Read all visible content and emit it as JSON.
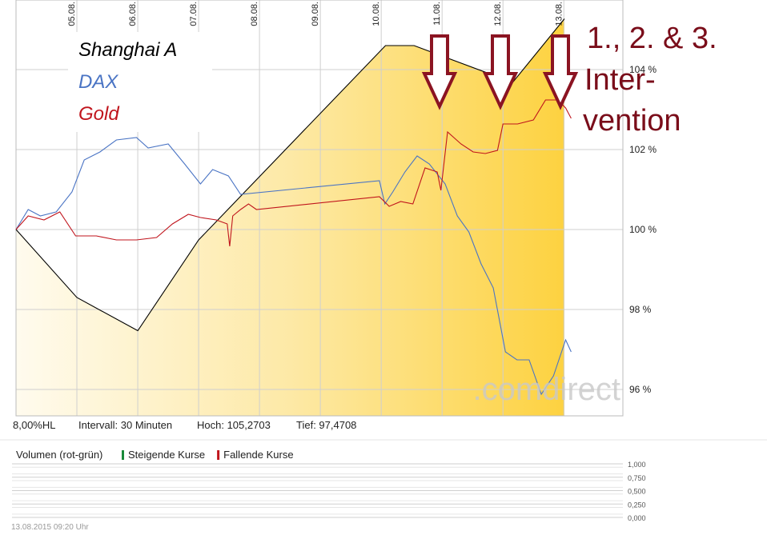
{
  "chart_data": [
    {
      "type": "line",
      "xlim": [
        4,
        13.97
      ],
      "ylim": [
        95.34,
        105.74
      ],
      "xticks": [
        {
          "value": 5,
          "label": "05.08."
        },
        {
          "value": 6,
          "label": "06.08."
        },
        {
          "value": 7,
          "label": "07.08."
        },
        {
          "value": 8,
          "label": "08.08."
        },
        {
          "value": 9,
          "label": "09.08."
        },
        {
          "value": 10,
          "label": "10.08."
        },
        {
          "value": 11,
          "label": "11.08."
        },
        {
          "value": 12,
          "label": "12.08."
        },
        {
          "value": 13,
          "label": "13.08."
        }
      ],
      "yticks": [
        {
          "value": 96,
          "label": "96 %"
        },
        {
          "value": 98,
          "label": "98 %"
        },
        {
          "value": 100,
          "label": "100 %"
        },
        {
          "value": 102,
          "label": "102 %"
        },
        {
          "value": 104,
          "label": "104 %"
        }
      ],
      "grid": true,
      "series": [
        {
          "name": "Shanghai A",
          "color": "#000000",
          "area": true,
          "x": [
            4.0,
            5.0,
            6.0,
            7.0,
            10.07,
            10.54,
            12.16,
            13.01
          ],
          "values": [
            100,
            98.3,
            97.47,
            99.74,
            104.6,
            104.6,
            103.68,
            105.27
          ]
        },
        {
          "name": "DAX",
          "color": "#4a74c4",
          "x": [
            4.0,
            4.2,
            4.4,
            4.66,
            4.92,
            5.12,
            5.38,
            5.65,
            5.98,
            6.17,
            6.5,
            6.77,
            7.03,
            7.23,
            7.49,
            7.69,
            9.97,
            10.06,
            10.19,
            10.39,
            10.59,
            10.79,
            11.05,
            11.25,
            11.44,
            11.64,
            11.84,
            12.04,
            12.23,
            12.43,
            12.63,
            12.83,
            13.03,
            13.12
          ],
          "values": [
            100,
            100.5,
            100.34,
            100.44,
            100.94,
            101.74,
            101.94,
            102.24,
            102.3,
            102.04,
            102.14,
            101.64,
            101.14,
            101.5,
            101.34,
            100.88,
            101.22,
            100.64,
            100.94,
            101.44,
            101.84,
            101.64,
            101.14,
            100.34,
            99.94,
            99.14,
            98.54,
            96.94,
            96.74,
            96.74,
            95.88,
            96.34,
            97.24,
            96.94
          ]
        },
        {
          "name": "Gold",
          "color": "#c0141c",
          "x": [
            4.0,
            4.2,
            4.46,
            4.72,
            4.98,
            5.32,
            5.65,
            5.98,
            6.31,
            6.57,
            6.83,
            7.03,
            7.29,
            7.47,
            7.51,
            7.56,
            7.69,
            7.82,
            7.95,
            9.97,
            10.13,
            10.32,
            10.52,
            10.72,
            10.92,
            10.98,
            11.09,
            11.31,
            11.51,
            11.71,
            11.91,
            12.0,
            12.24,
            12.5,
            12.7,
            12.9,
            13.03,
            13.12
          ],
          "values": [
            100,
            100.34,
            100.24,
            100.44,
            99.84,
            99.84,
            99.74,
            99.74,
            99.8,
            100.14,
            100.38,
            100.3,
            100.24,
            100.14,
            99.58,
            100.34,
            100.5,
            100.64,
            100.5,
            100.82,
            100.58,
            100.7,
            100.64,
            101.54,
            101.44,
            100.98,
            102.44,
            102.14,
            101.94,
            101.9,
            101.98,
            102.64,
            102.64,
            102.74,
            103.24,
            103.24,
            103.04,
            102.78
          ]
        }
      ],
      "annotations": [
        "1., 2. & 3.",
        "Inter-",
        "vention"
      ],
      "watermark": ".comdirect",
      "info": [
        "8,00%HL",
        "Intervall: 30 Minuten",
        "Hoch: 105,2703",
        "Tief: 97,4708"
      ]
    },
    {
      "type": "volume",
      "title": "Volumen (rot-grün)",
      "legend": [
        {
          "name": "Steigende Kurse",
          "color": "#1a8a3a"
        },
        {
          "name": "Fallende Kurse",
          "color": "#c0141c"
        }
      ],
      "ylim": [
        0,
        1
      ],
      "yticks": [
        {
          "value": 1,
          "label": "1,000"
        },
        {
          "value": 0.75,
          "label": "0,750"
        },
        {
          "value": 0.5,
          "label": "0,500"
        },
        {
          "value": 0.25,
          "label": "0,250"
        },
        {
          "value": 0,
          "label": "0,000"
        }
      ]
    }
  ],
  "timestamp": "13.08.2015 09:20 Uhr"
}
